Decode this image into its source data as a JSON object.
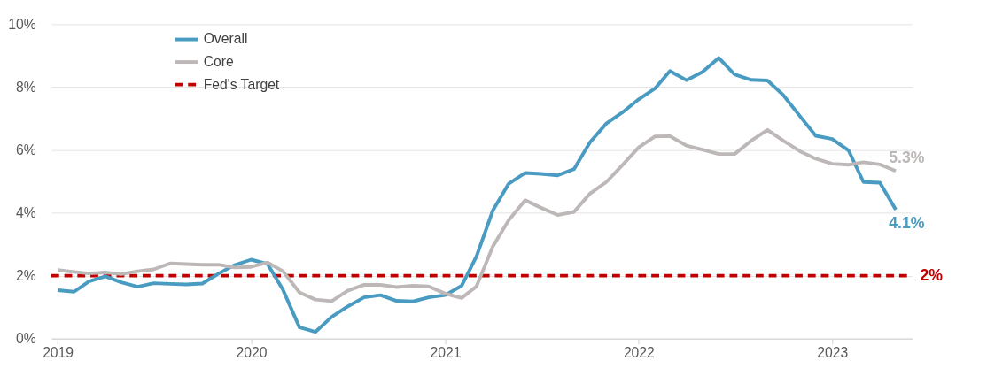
{
  "chart_data": {
    "type": "line",
    "x": [
      "2019-01",
      "2019-02",
      "2019-03",
      "2019-04",
      "2019-05",
      "2019-06",
      "2019-07",
      "2019-08",
      "2019-09",
      "2019-10",
      "2019-11",
      "2019-12",
      "2020-01",
      "2020-02",
      "2020-03",
      "2020-04",
      "2020-05",
      "2020-06",
      "2020-07",
      "2020-08",
      "2020-09",
      "2020-10",
      "2020-11",
      "2020-12",
      "2021-01",
      "2021-02",
      "2021-03",
      "2021-04",
      "2021-05",
      "2021-06",
      "2021-07",
      "2021-08",
      "2021-09",
      "2021-10",
      "2021-11",
      "2021-12",
      "2022-01",
      "2022-02",
      "2022-03",
      "2022-04",
      "2022-05",
      "2022-06",
      "2022-07",
      "2022-08",
      "2022-09",
      "2022-10",
      "2022-11",
      "2022-12",
      "2023-01",
      "2023-02",
      "2023-03",
      "2023-04",
      "2023-05"
    ],
    "series": [
      {
        "name": "Overall",
        "color": "#4a9bc1",
        "values": [
          1.54,
          1.49,
          1.82,
          1.98,
          1.79,
          1.65,
          1.76,
          1.74,
          1.72,
          1.75,
          2.07,
          2.34,
          2.51,
          2.37,
          1.55,
          0.36,
          0.21,
          0.69,
          1.02,
          1.31,
          1.38,
          1.2,
          1.18,
          1.31,
          1.38,
          1.68,
          2.61,
          4.08,
          4.93,
          5.27,
          5.24,
          5.19,
          5.39,
          6.24,
          6.84,
          7.19,
          7.61,
          7.96,
          8.51,
          8.22,
          8.48,
          8.93,
          8.4,
          8.23,
          8.21,
          7.74,
          7.08,
          6.45,
          6.35,
          5.98,
          4.98,
          4.96,
          4.1
        ],
        "value_labels": [
          null,
          null,
          null,
          null,
          null,
          null,
          null,
          null,
          null,
          null,
          null,
          null,
          null,
          null,
          null,
          null,
          null,
          null,
          null,
          null,
          null,
          null,
          null,
          null,
          null,
          null,
          null,
          null,
          null,
          null,
          null,
          null,
          null,
          null,
          null,
          null,
          null,
          null,
          null,
          null,
          null,
          null,
          null,
          null,
          null,
          null,
          null,
          null,
          null,
          null,
          null,
          null,
          "4.1%"
        ]
      },
      {
        "name": "Core",
        "color": "#bdb7b7",
        "values": [
          2.18,
          2.12,
          2.07,
          2.1,
          2.05,
          2.14,
          2.2,
          2.39,
          2.37,
          2.35,
          2.35,
          2.26,
          2.28,
          2.42,
          2.14,
          1.47,
          1.24,
          1.19,
          1.52,
          1.71,
          1.71,
          1.64,
          1.68,
          1.66,
          1.43,
          1.29,
          1.66,
          2.93,
          3.77,
          4.4,
          4.16,
          3.93,
          4.03,
          4.61,
          4.98,
          5.51,
          6.08,
          6.43,
          6.44,
          6.14,
          6.01,
          5.87,
          5.87,
          6.29,
          6.64,
          6.29,
          5.96,
          5.72,
          5.56,
          5.53,
          5.61,
          5.54,
          5.33
        ],
        "value_labels": [
          null,
          null,
          null,
          null,
          null,
          null,
          null,
          null,
          null,
          null,
          null,
          null,
          null,
          null,
          null,
          null,
          null,
          null,
          null,
          null,
          null,
          null,
          null,
          null,
          null,
          null,
          null,
          null,
          null,
          null,
          null,
          null,
          null,
          null,
          null,
          null,
          null,
          null,
          null,
          null,
          null,
          null,
          null,
          null,
          null,
          null,
          null,
          null,
          null,
          null,
          null,
          null,
          "5.3%"
        ]
      }
    ],
    "ref_lines": [
      {
        "axis": "y",
        "value": 2,
        "label": "Fed's Target",
        "color": "#c00000",
        "line_style": "dashed"
      }
    ],
    "annotations": [
      {
        "text": "2%",
        "x": "2023-05",
        "y": 2
      }
    ],
    "xlim": [
      "2018-12-20",
      "2023-06-01"
    ],
    "xticks": [
      {
        "value": "2019-01",
        "label": "2019"
      },
      {
        "value": "2020-01",
        "label": "2020"
      },
      {
        "value": "2021-01",
        "label": "2021"
      },
      {
        "value": "2022-01",
        "label": "2022"
      },
      {
        "value": "2023-01",
        "label": "2023"
      }
    ],
    "ylim": [
      0,
      10
    ],
    "yticks": [
      {
        "value": 0,
        "label": "0%"
      },
      {
        "value": 2,
        "label": "2%"
      },
      {
        "value": 4,
        "label": "4%"
      },
      {
        "value": 6,
        "label": "6%"
      },
      {
        "value": 8,
        "label": "8%"
      },
      {
        "value": 10,
        "label": "10%"
      }
    ],
    "grid": "y",
    "legend": "top left",
    "marker": "none",
    "line_style": "solid"
  }
}
